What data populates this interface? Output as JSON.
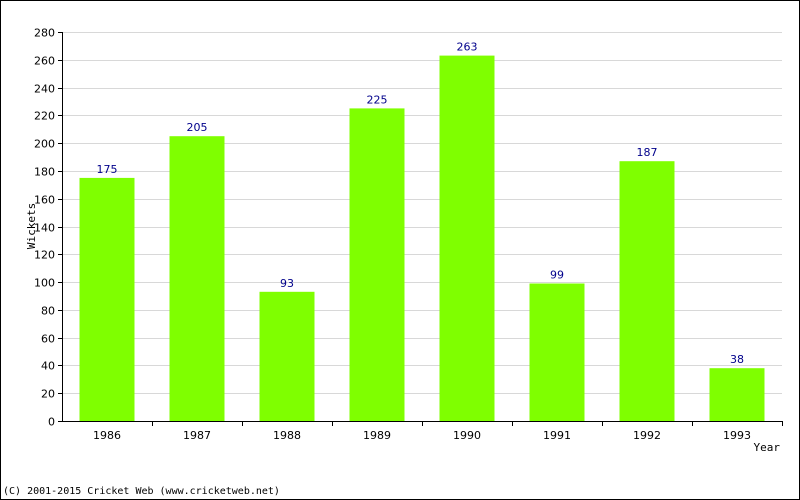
{
  "chart_data": {
    "type": "bar",
    "title": "",
    "xlabel": "Year",
    "ylabel": "Wickets",
    "categories": [
      "1986",
      "1987",
      "1988",
      "1989",
      "1990",
      "1991",
      "1992",
      "1993"
    ],
    "values": [
      175,
      205,
      93,
      225,
      263,
      99,
      187,
      38
    ],
    "ylim": [
      0,
      280
    ],
    "yticks": [
      0,
      20,
      40,
      60,
      80,
      100,
      120,
      140,
      160,
      180,
      200,
      220,
      240,
      260,
      280
    ],
    "grid": true,
    "data_labels": true,
    "legend": "none"
  },
  "colors": {
    "bar": "#7FFF00",
    "grid": "#D8D8D8",
    "axis": "#000000",
    "data_label": "#00008B"
  },
  "footer": {
    "copyright": "(C) 2001-2015 Cricket Web (www.cricketweb.net)"
  }
}
